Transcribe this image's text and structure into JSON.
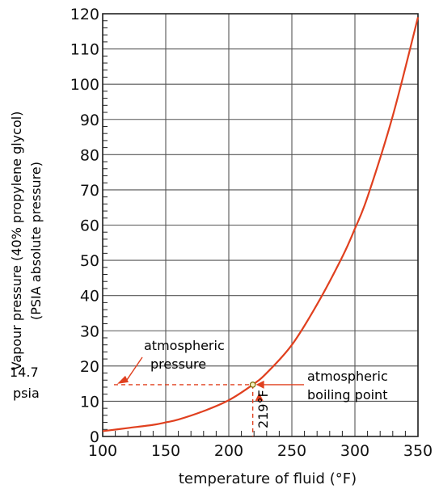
{
  "chart_data": {
    "type": "line",
    "xlabel": "temperature of fluid (°F)",
    "ylabel_line1": "Vapour pressure (40% propylene glycol)",
    "ylabel_line2": "(PSIA absolute pressure)",
    "xlim": [
      100,
      350
    ],
    "ylim": [
      0,
      120
    ],
    "x_ticks": [
      100,
      150,
      200,
      250,
      300,
      350
    ],
    "y_ticks": [
      0,
      10,
      20,
      30,
      40,
      50,
      60,
      70,
      80,
      90,
      100,
      110,
      120
    ],
    "grid": true,
    "series": [
      {
        "x": [
          100,
          120,
          140,
          150,
          160,
          180,
          200,
          219,
          230,
          250,
          270,
          290,
          300,
          310,
          330,
          350
        ],
        "y": [
          1.5,
          2.4,
          3.3,
          4.0,
          4.8,
          7.2,
          10.3,
          14.7,
          18.0,
          26.0,
          37.5,
          51.0,
          59.0,
          68.0,
          91.0,
          119.0
        ]
      }
    ],
    "annotations": {
      "reference_pressure": 14.7,
      "boiling_point_temp": 219,
      "pressure_value_label": "14.7",
      "pressure_unit_label": "psia",
      "atmospheric_pressure_line1": "atmospheric",
      "atmospheric_pressure_line2": "pressure",
      "boiling_point_line1": "atmospheric",
      "boiling_point_line2": "boiling point",
      "boiling_temp_label": "219°F"
    },
    "colors": {
      "curve": "#e0401f",
      "annotation": "#e0401f",
      "grid": "#555555",
      "text": "#111111"
    }
  }
}
